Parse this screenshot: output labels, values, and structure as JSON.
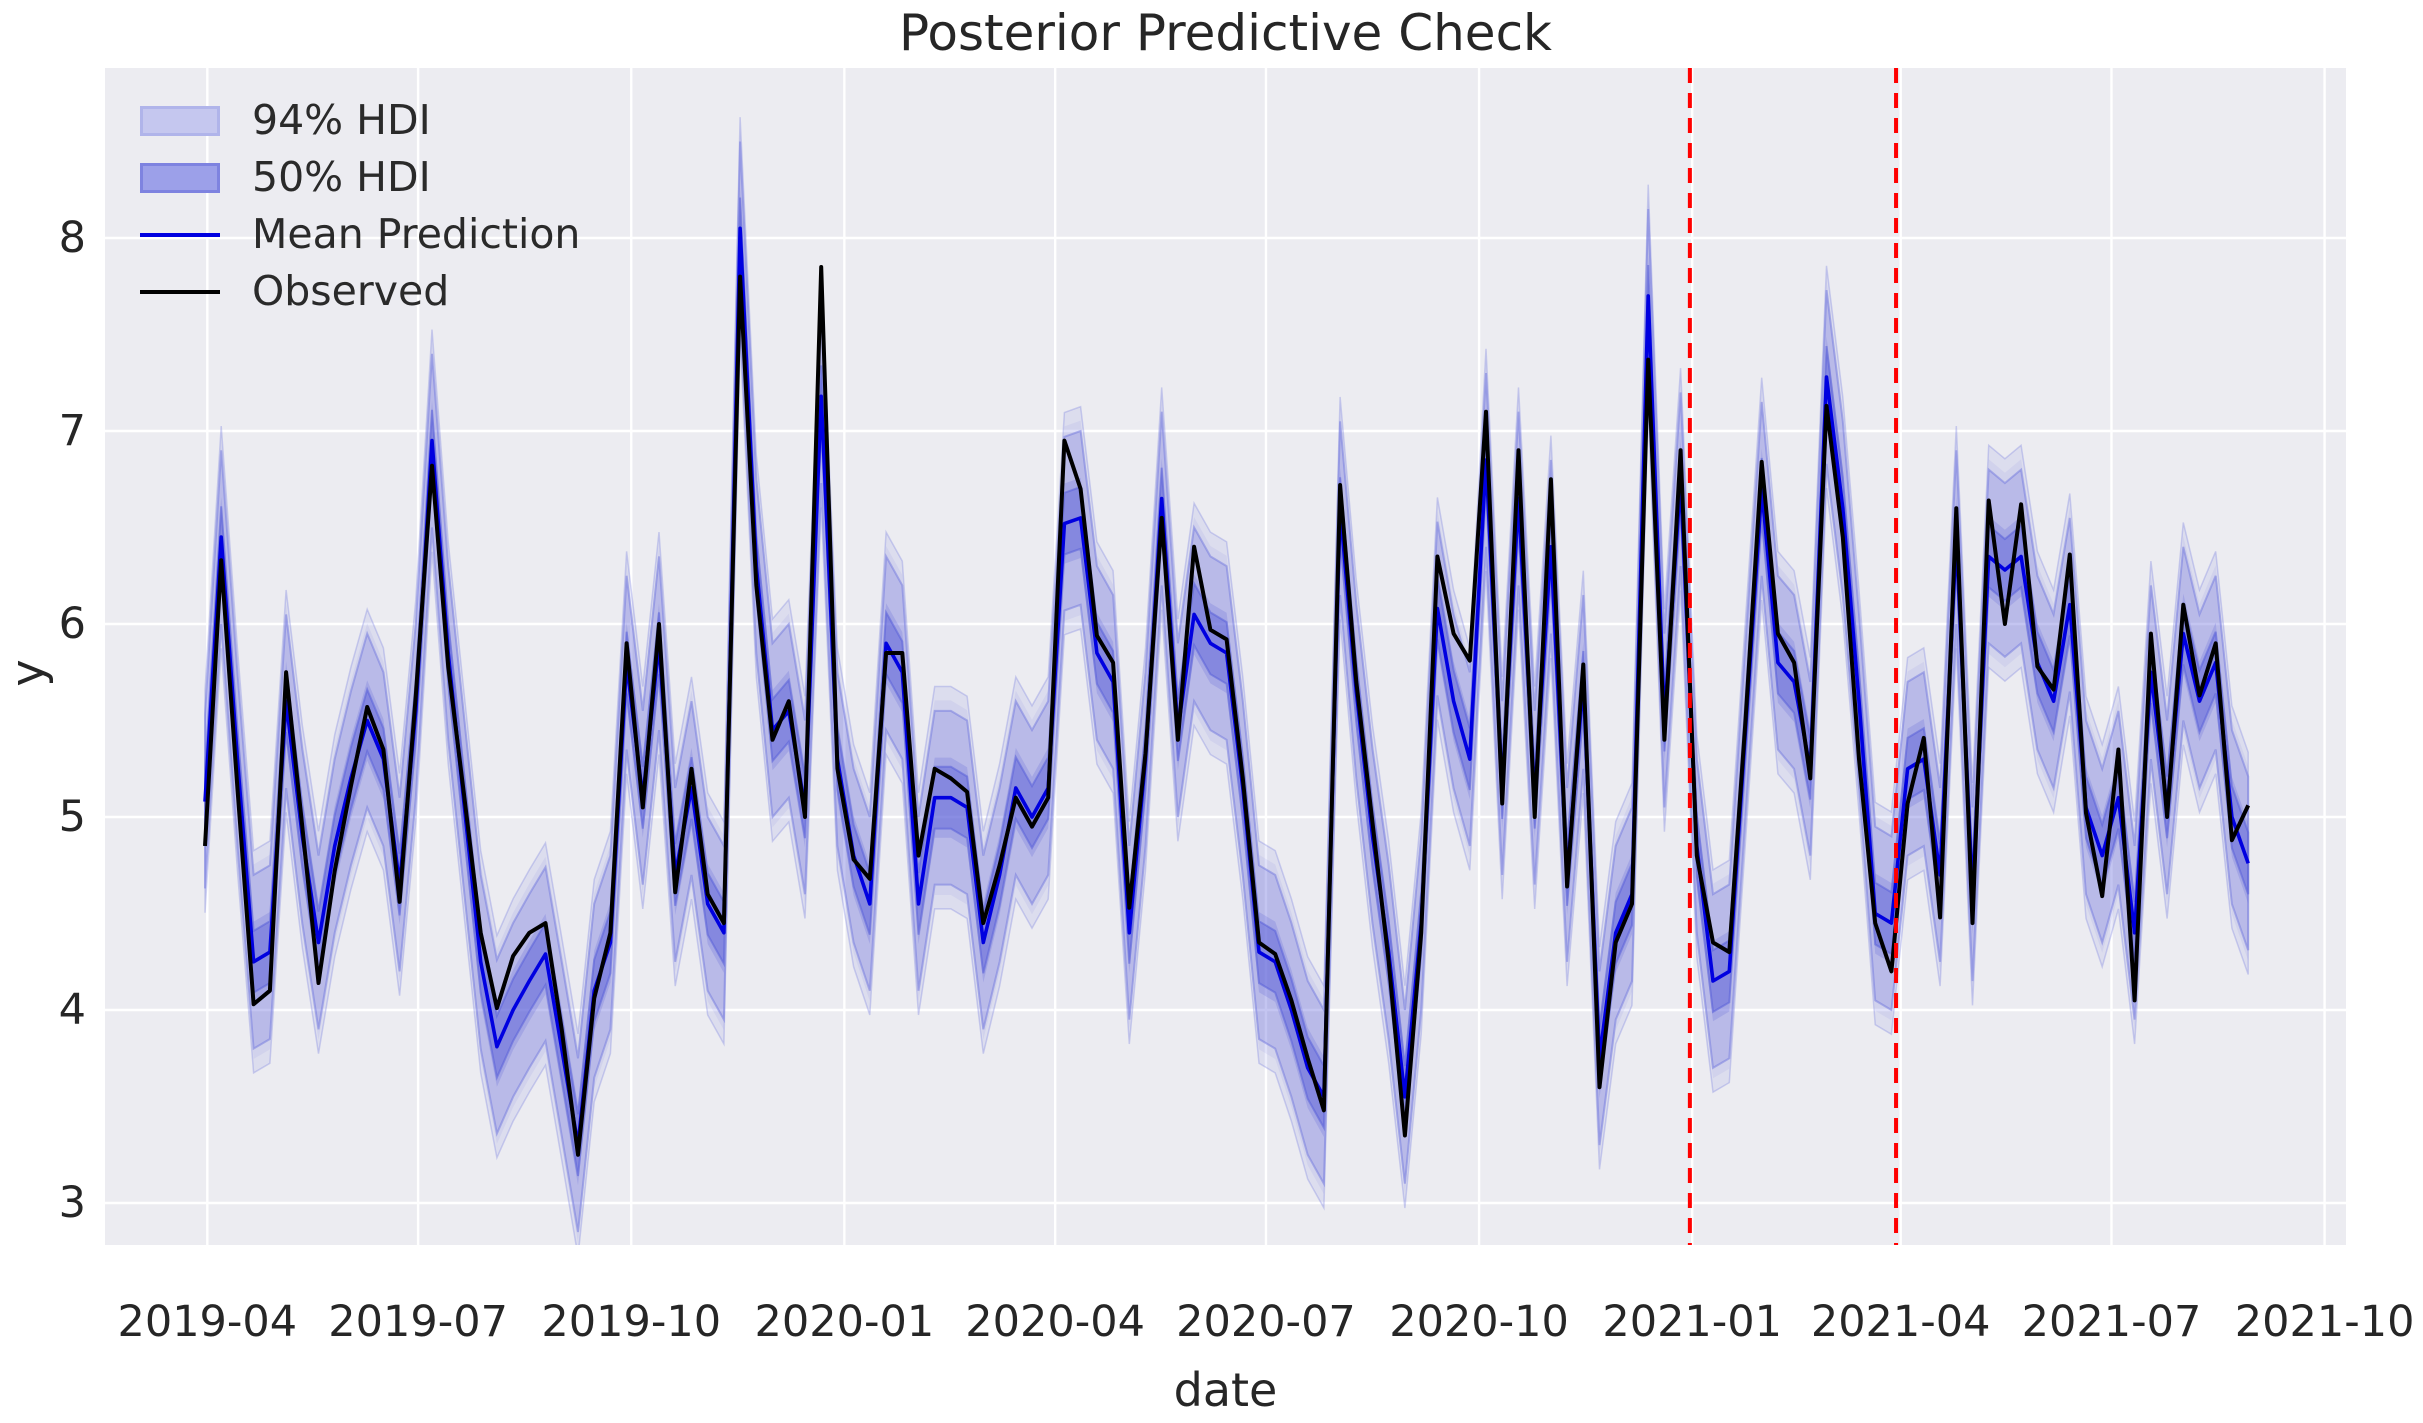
{
  "title": "Posterior Predictive Check",
  "legend": {
    "items": [
      {
        "label": "94% HDI",
        "type": "patch",
        "fill": "#c5c7ef",
        "edge": "#b0b4ea"
      },
      {
        "label": "50% HDI",
        "type": "patch",
        "fill": "#9ca0e9",
        "edge": "#7e83e0"
      },
      {
        "label": "Mean Prediction",
        "type": "line",
        "color": "#0000E0"
      },
      {
        "label": "Observed",
        "type": "line",
        "color": "#000000"
      }
    ]
  },
  "colors": {
    "figure_background": "#ffffff",
    "axes_background": "#ECECF1",
    "grid": "#ffffff",
    "observed_line": "#000000",
    "mean_line": "#0000E0",
    "band_base": "#7278DD",
    "band50_base": "#5A60D8",
    "red_vline": "#FF0000",
    "text": "#262626"
  },
  "chart_data": {
    "type": "line",
    "title": "Posterior Predictive Check",
    "xlabel": "date",
    "ylabel": "y",
    "grid": true,
    "legend_position": "upper left",
    "start_date": "2019-03-31",
    "freq": "weekly",
    "y_ticks": [
      3,
      4,
      5,
      6,
      7,
      8
    ],
    "ylim": [
      2.78,
      8.88
    ],
    "xlim_dates": [
      "2019-02-16",
      "2021-10-10"
    ],
    "x_ticks": [
      {
        "label": "2019-04",
        "date": "2019-04-01"
      },
      {
        "label": "2019-07",
        "date": "2019-07-01"
      },
      {
        "label": "2019-10",
        "date": "2019-10-01"
      },
      {
        "label": "2020-01",
        "date": "2020-01-01"
      },
      {
        "label": "2020-04",
        "date": "2020-04-01"
      },
      {
        "label": "2020-07",
        "date": "2020-07-01"
      },
      {
        "label": "2020-10",
        "date": "2020-10-01"
      },
      {
        "label": "2021-01",
        "date": "2021-01-01"
      },
      {
        "label": "2021-04",
        "date": "2021-04-01"
      },
      {
        "label": "2021-07",
        "date": "2021-07-01"
      },
      {
        "label": "2021-10",
        "date": "2021-10-01"
      }
    ],
    "red_dashed_vlines": [
      "2020-12-31",
      "2021-03-30"
    ],
    "hdi94_halfwidth": 0.45,
    "hdi50_halfwidth": 0.16,
    "hdi_note": "HDI bands estimated from plot as mean prediction +/- halfwidth; 94% band edges are soft/fuzzy in source figure.",
    "dates": [
      "2019-03-31",
      "2019-04-07",
      "2019-04-14",
      "2019-04-21",
      "2019-04-28",
      "2019-05-05",
      "2019-05-12",
      "2019-05-19",
      "2019-05-26",
      "2019-06-02",
      "2019-06-09",
      "2019-06-16",
      "2019-06-23",
      "2019-06-30",
      "2019-07-07",
      "2019-07-14",
      "2019-07-21",
      "2019-07-28",
      "2019-08-04",
      "2019-08-11",
      "2019-08-18",
      "2019-08-25",
      "2019-09-01",
      "2019-09-08",
      "2019-09-15",
      "2019-09-22",
      "2019-09-29",
      "2019-10-06",
      "2019-10-13",
      "2019-10-20",
      "2019-10-27",
      "2019-11-03",
      "2019-11-10",
      "2019-11-17",
      "2019-11-24",
      "2019-12-01",
      "2019-12-08",
      "2019-12-15",
      "2019-12-22",
      "2019-12-29",
      "2020-01-05",
      "2020-01-12",
      "2020-01-19",
      "2020-01-26",
      "2020-02-02",
      "2020-02-09",
      "2020-02-16",
      "2020-02-23",
      "2020-03-01",
      "2020-03-08",
      "2020-03-15",
      "2020-03-22",
      "2020-03-29",
      "2020-04-05",
      "2020-04-12",
      "2020-04-19",
      "2020-04-26",
      "2020-05-03",
      "2020-05-10",
      "2020-05-17",
      "2020-05-24",
      "2020-05-31",
      "2020-06-07",
      "2020-06-14",
      "2020-06-21",
      "2020-06-28",
      "2020-07-05",
      "2020-07-12",
      "2020-07-19",
      "2020-07-26",
      "2020-08-02",
      "2020-08-09",
      "2020-08-16",
      "2020-08-23",
      "2020-08-30",
      "2020-09-06",
      "2020-09-13",
      "2020-09-20",
      "2020-09-27",
      "2020-10-04",
      "2020-10-11",
      "2020-10-18",
      "2020-10-25",
      "2020-11-01",
      "2020-11-08",
      "2020-11-15",
      "2020-11-22",
      "2020-11-29",
      "2020-12-06",
      "2020-12-13",
      "2020-12-20",
      "2020-12-27",
      "2021-01-03",
      "2021-01-10",
      "2021-01-17",
      "2021-01-24",
      "2021-01-31",
      "2021-02-07",
      "2021-02-14",
      "2021-02-21",
      "2021-02-28",
      "2021-03-07",
      "2021-03-14",
      "2021-03-21",
      "2021-03-28",
      "2021-04-04",
      "2021-04-11",
      "2021-04-18",
      "2021-04-25",
      "2021-05-02",
      "2021-05-09",
      "2021-05-16",
      "2021-05-23",
      "2021-05-30",
      "2021-06-06",
      "2021-06-13",
      "2021-06-20",
      "2021-06-27",
      "2021-07-04",
      "2021-07-11",
      "2021-07-18",
      "2021-07-25",
      "2021-08-01",
      "2021-08-08",
      "2021-08-15",
      "2021-08-22",
      "2021-08-29"
    ],
    "series": [
      {
        "name": "Observed",
        "values": [
          4.85,
          6.33,
          5.15,
          4.03,
          4.1,
          5.75,
          4.95,
          4.14,
          4.72,
          5.16,
          5.57,
          5.35,
          4.56,
          5.63,
          6.82,
          5.78,
          5.1,
          4.4,
          4.01,
          4.28,
          4.4,
          4.45,
          3.9,
          3.25,
          4.06,
          4.4,
          5.9,
          5.05,
          6.0,
          4.61,
          5.25,
          4.6,
          4.45,
          7.8,
          6.2,
          5.4,
          5.6,
          5.0,
          7.85,
          5.25,
          4.78,
          4.68,
          5.85,
          5.85,
          4.8,
          5.25,
          5.2,
          5.13,
          4.45,
          4.75,
          5.1,
          4.95,
          5.1,
          6.95,
          6.7,
          5.94,
          5.8,
          4.53,
          5.33,
          6.55,
          5.4,
          6.4,
          5.97,
          5.92,
          5.2,
          4.35,
          4.29,
          4.05,
          3.75,
          3.48,
          6.72,
          5.7,
          4.97,
          4.25,
          3.35,
          4.4,
          6.35,
          5.95,
          5.81,
          7.1,
          5.07,
          6.9,
          5.0,
          6.75,
          4.64,
          5.79,
          3.6,
          4.35,
          4.55,
          7.37,
          5.4,
          6.9,
          4.8,
          4.35,
          4.3,
          5.5,
          6.84,
          5.95,
          5.8,
          5.2,
          7.13,
          6.45,
          5.3,
          4.45,
          4.2,
          5.07,
          5.41,
          4.48,
          6.6,
          4.45,
          6.64,
          6.0,
          6.62,
          5.78,
          5.66,
          6.36,
          5.02,
          4.59,
          5.35,
          4.05,
          5.95,
          5.0,
          6.1,
          5.63,
          5.9,
          4.88,
          5.06
        ]
      },
      {
        "name": "Mean Prediction",
        "values": [
          5.08,
          6.45,
          5.3,
          4.25,
          4.3,
          5.6,
          4.9,
          4.35,
          4.85,
          5.2,
          5.5,
          5.3,
          4.65,
          5.55,
          6.95,
          5.85,
          5.05,
          4.25,
          3.81,
          4.0,
          4.15,
          4.29,
          3.8,
          3.3,
          4.1,
          4.35,
          5.8,
          5.1,
          5.9,
          4.7,
          5.15,
          4.55,
          4.4,
          8.05,
          6.3,
          5.45,
          5.55,
          5.05,
          7.18,
          5.3,
          4.8,
          4.55,
          5.9,
          5.75,
          4.55,
          5.1,
          5.1,
          5.05,
          4.35,
          4.7,
          5.15,
          5.0,
          5.15,
          6.52,
          6.55,
          5.85,
          5.7,
          4.4,
          5.3,
          6.65,
          5.45,
          6.05,
          5.9,
          5.85,
          5.15,
          4.3,
          4.25,
          4.0,
          3.7,
          3.55,
          6.6,
          5.65,
          4.9,
          4.3,
          3.55,
          4.45,
          6.08,
          5.6,
          5.3,
          6.85,
          5.15,
          6.65,
          5.1,
          6.4,
          4.7,
          5.7,
          3.75,
          4.4,
          4.6,
          7.7,
          5.5,
          6.75,
          4.85,
          4.15,
          4.2,
          5.45,
          6.7,
          5.8,
          5.7,
          5.25,
          7.28,
          6.6,
          5.6,
          4.5,
          4.45,
          5.25,
          5.3,
          4.7,
          6.45,
          4.6,
          6.35,
          6.28,
          6.35,
          5.8,
          5.6,
          6.1,
          5.05,
          4.8,
          5.1,
          4.4,
          5.75,
          5.05,
          5.95,
          5.6,
          5.8,
          5.0,
          4.76
        ]
      }
    ]
  }
}
